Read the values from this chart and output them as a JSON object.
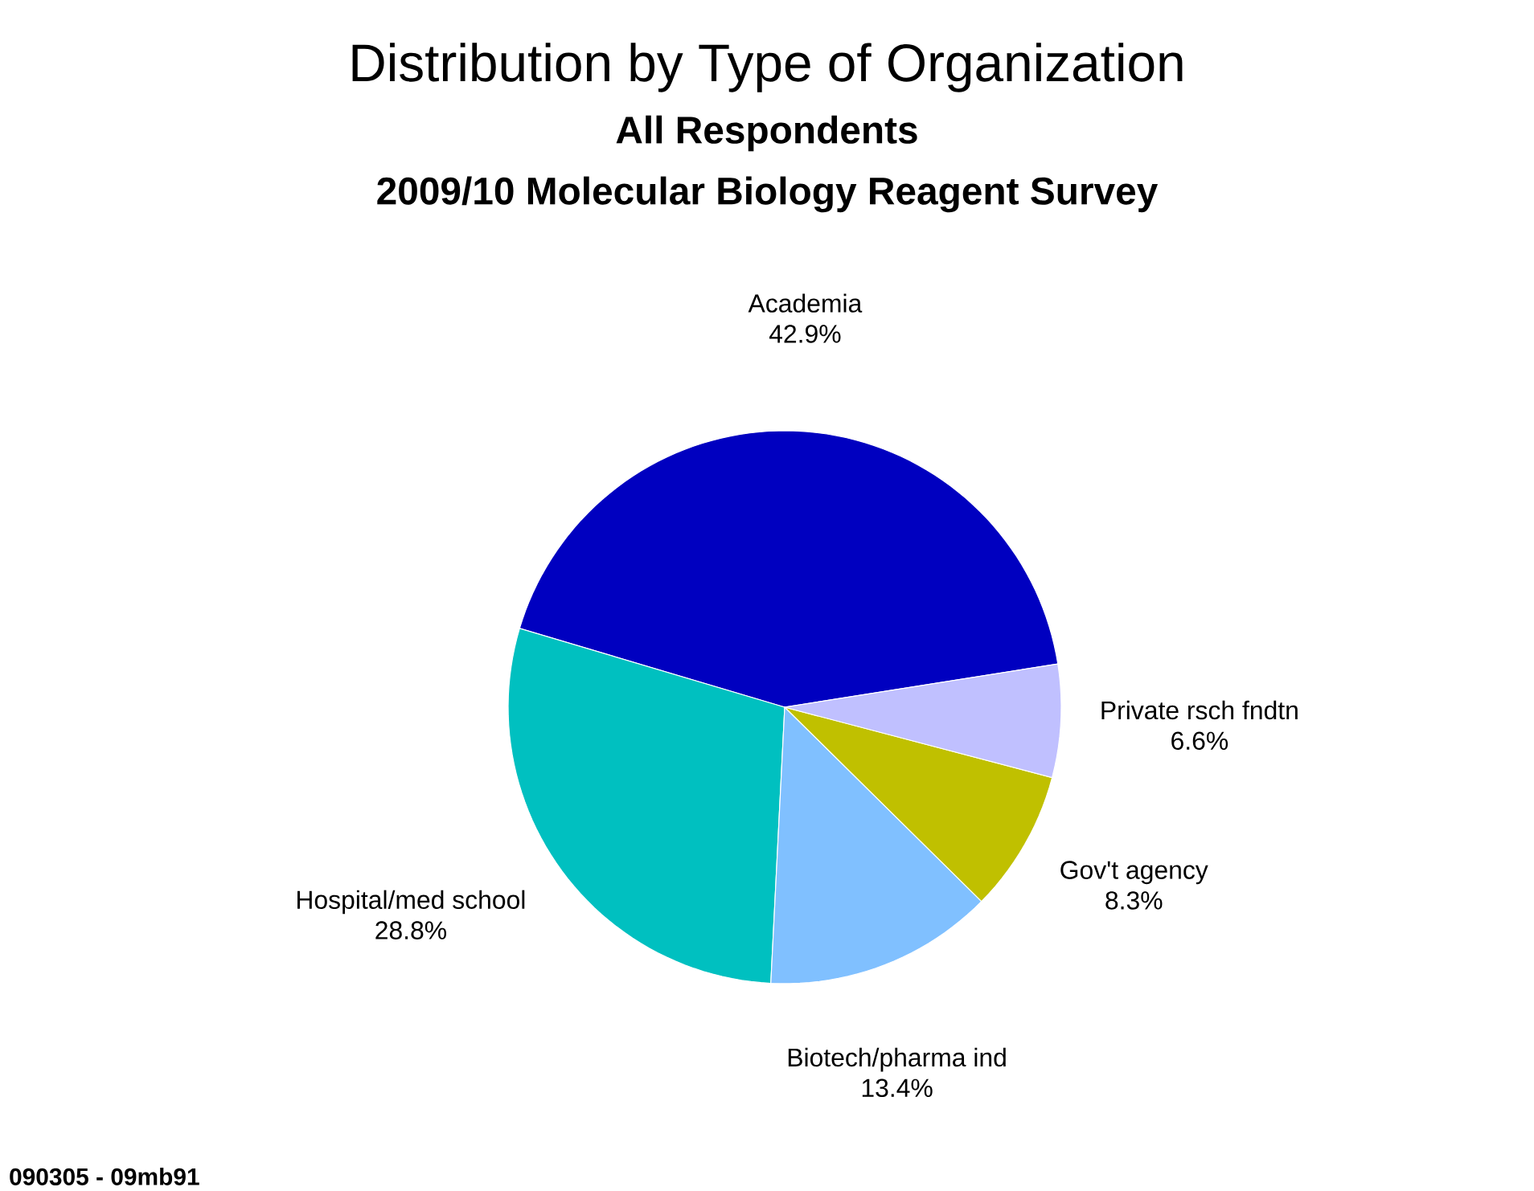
{
  "chart_data": {
    "type": "pie",
    "title": "Distribution by Type of Organization",
    "subtitle": "All Respondents",
    "annotations": [
      "2009/10 Molecular Biology Reagent Survey",
      "090305 - 09mb91"
    ],
    "categories": [
      "Academia",
      "Hospital/med school",
      "Biotech/pharma ind",
      "Gov't agency",
      "Private rsch fndtn"
    ],
    "values": [
      42.9,
      28.8,
      13.4,
      8.3,
      6.6
    ],
    "value_labels": [
      "42.9%",
      "28.8%",
      "13.4%",
      "8.3%",
      "6.6%"
    ],
    "colors": [
      "#0000c0",
      "#00c0c0",
      "#80c0ff",
      "#c0c000",
      "#c0c0ff"
    ]
  }
}
